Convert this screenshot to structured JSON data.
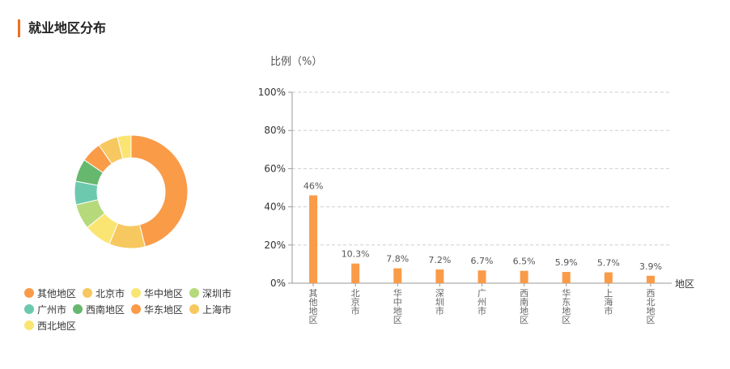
{
  "section": {
    "title": "就业地区分布"
  },
  "chart_data": {
    "type": "bar",
    "ylabel": "比例（%）",
    "xlabel": "地区",
    "ylim": [
      0,
      100
    ],
    "yticks": [
      "0%",
      "20%",
      "40%",
      "60%",
      "80%",
      "100%"
    ],
    "grid": true,
    "categories": [
      "其他地区",
      "北京市",
      "华中地区",
      "深圳市",
      "广州市",
      "西南地区",
      "华东地区",
      "上海市",
      "西北地区"
    ],
    "values": [
      46,
      10.3,
      7.8,
      7.2,
      6.7,
      6.5,
      5.9,
      5.7,
      3.9
    ],
    "value_labels": [
      "46%",
      "10.3%",
      "7.8%",
      "7.2%",
      "6.7%",
      "6.5%",
      "5.9%",
      "5.7%",
      "3.9%"
    ],
    "bar_color": "#fa9b48"
  },
  "donut": {
    "type": "pie",
    "legend_placement": "bottom",
    "slices": [
      {
        "label": "其他地区",
        "value": 46,
        "color": "#fa9b48"
      },
      {
        "label": "北京市",
        "value": 10.3,
        "color": "#f6c85f"
      },
      {
        "label": "华中地区",
        "value": 7.8,
        "color": "#fae573"
      },
      {
        "label": "深圳市",
        "value": 7.2,
        "color": "#b6d97c"
      },
      {
        "label": "广州市",
        "value": 6.7,
        "color": "#6cc9ae"
      },
      {
        "label": "西南地区",
        "value": 6.5,
        "color": "#67b86f"
      },
      {
        "label": "华东地区",
        "value": 5.9,
        "color": "#fa9b48"
      },
      {
        "label": "上海市",
        "value": 5.7,
        "color": "#f6c85f"
      },
      {
        "label": "西北地区",
        "value": 3.9,
        "color": "#fae573"
      }
    ]
  }
}
